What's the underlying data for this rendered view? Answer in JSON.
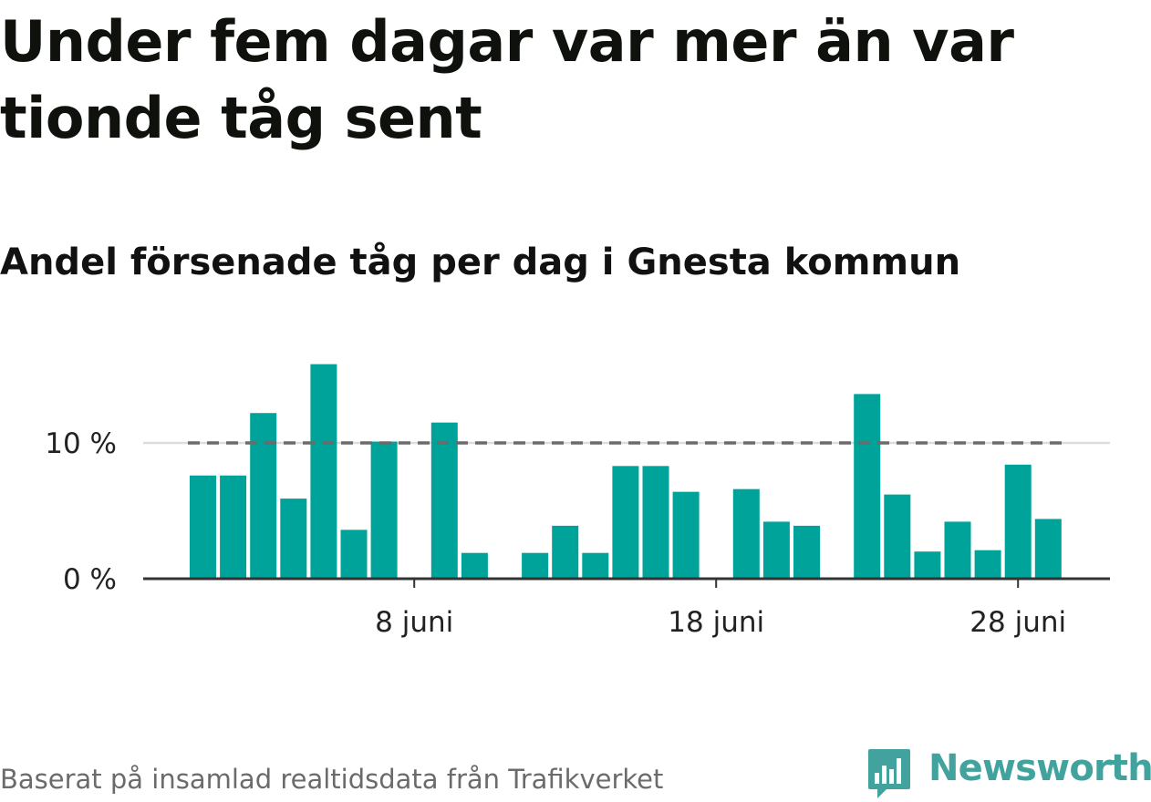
{
  "header": {
    "title": "Under fem dagar var mer än var tionde tåg sent",
    "subtitle": "Andel försenade tåg per dag i Gnesta kommun"
  },
  "footer": {
    "source": "Baserat på insamlad realtidsdata från Trafikverket",
    "brand": "Newsworthy",
    "brand_icon": "bar-chart-speech-bubble-icon"
  },
  "colors": {
    "bar": "#00a39a",
    "reference_line": "#6b6b6b",
    "gridline": "#dcdcdc",
    "axis": "#333333",
    "brand": "#42a39e"
  },
  "chart_data": {
    "type": "bar",
    "title": "Andel försenade tåg per dag i Gnesta kommun",
    "xlabel": "",
    "ylabel": "",
    "x": [
      "2024-06-01",
      "2024-06-02",
      "2024-06-03",
      "2024-06-04",
      "2024-06-05",
      "2024-06-06",
      "2024-06-07",
      "2024-06-08",
      "2024-06-09",
      "2024-06-10",
      "2024-06-11",
      "2024-06-12",
      "2024-06-13",
      "2024-06-14",
      "2024-06-15",
      "2024-06-16",
      "2024-06-17",
      "2024-06-18",
      "2024-06-19",
      "2024-06-20",
      "2024-06-21",
      "2024-06-22",
      "2024-06-23",
      "2024-06-24",
      "2024-06-25",
      "2024-06-26",
      "2024-06-27",
      "2024-06-28",
      "2024-06-29"
    ],
    "values": [
      7.6,
      7.6,
      12.2,
      5.9,
      15.8,
      3.6,
      10.1,
      0,
      11.5,
      1.9,
      0,
      1.9,
      3.9,
      1.9,
      8.3,
      8.3,
      6.4,
      0,
      6.6,
      4.2,
      3.9,
      0,
      13.6,
      6.2,
      2.0,
      4.2,
      2.1,
      8.4,
      4.4
    ],
    "ylim": [
      0,
      16
    ],
    "yticks": [
      0,
      10
    ],
    "ytick_labels": [
      "0 %",
      "10 %"
    ],
    "xtick_dates": [
      "2024-06-08",
      "2024-06-18",
      "2024-06-28"
    ],
    "xtick_labels": [
      "8 juni",
      "18 juni",
      "28 juni"
    ],
    "reference_line": {
      "value": 10,
      "style": "dashed"
    },
    "grid": "horizontal"
  }
}
